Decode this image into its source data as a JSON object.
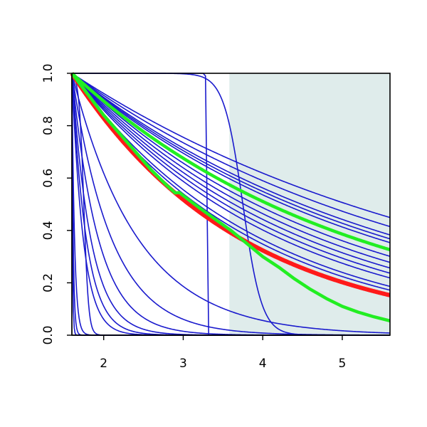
{
  "chart_data": {
    "type": "line",
    "title": "",
    "xlabel": "",
    "ylabel": "",
    "xlim": [
      1.6,
      5.6
    ],
    "ylim": [
      0.0,
      1.0
    ],
    "x_ticks": [
      2,
      3,
      4,
      5
    ],
    "y_ticks": [
      0.0,
      0.2,
      0.4,
      0.6,
      0.8,
      1.0
    ],
    "x_tick_labels": [
      "2",
      "3",
      "4",
      "5"
    ],
    "y_tick_labels": [
      "0.0",
      "0.2",
      "0.4",
      "0.6",
      "0.8",
      "1.0"
    ],
    "grid": false,
    "shaded_region": {
      "x": [
        3.58,
        5.6
      ],
      "color": "#dfeceb"
    },
    "colors": {
      "curves": "#1a1acd",
      "highlight_red": "#ff1a1a",
      "highlight_green": "#22ee22",
      "frame": "#000000"
    },
    "series": [
      {
        "kind": "exp",
        "color": "blue",
        "k": 0.2
      },
      {
        "kind": "exp",
        "color": "blue",
        "k": 0.22
      },
      {
        "kind": "exp",
        "color": "blue",
        "k": 0.24
      },
      {
        "kind": "exp",
        "color": "blue",
        "k": 0.25
      },
      {
        "kind": "exp",
        "color": "blue",
        "k": 0.26
      },
      {
        "kind": "exp",
        "color": "blue",
        "k": 0.28
      },
      {
        "kind": "exp",
        "color": "blue",
        "k": 0.3
      },
      {
        "kind": "exp",
        "color": "blue",
        "k": 0.32
      },
      {
        "kind": "exp",
        "color": "blue",
        "k": 0.34
      },
      {
        "kind": "exp",
        "color": "blue",
        "k": 0.36
      },
      {
        "kind": "exp",
        "color": "blue",
        "k": 0.38
      },
      {
        "kind": "exp",
        "color": "blue",
        "k": 0.42
      },
      {
        "kind": "exp",
        "color": "blue",
        "k": 0.44
      },
      {
        "kind": "exp",
        "color": "blue",
        "k": 0.47
      },
      {
        "kind": "exp",
        "color": "blue",
        "k": 1.2
      },
      {
        "kind": "exp",
        "color": "blue",
        "k": 2.0
      },
      {
        "kind": "exp",
        "color": "blue",
        "k": 3.0
      },
      {
        "kind": "exp",
        "color": "blue",
        "k": 4.2
      },
      {
        "kind": "exp",
        "color": "blue",
        "k": 5.5
      },
      {
        "kind": "exp",
        "color": "blue",
        "k": 7.0
      },
      {
        "kind": "exp",
        "color": "blue",
        "k": 30
      },
      {
        "kind": "exp",
        "color": "blue",
        "k": 60
      },
      {
        "kind": "exp",
        "color": "blue",
        "k": 120
      },
      {
        "kind": "step",
        "color": "blue",
        "x0": 1.75,
        "w": 0.03
      },
      {
        "kind": "step",
        "color": "blue",
        "x0": 3.75,
        "w": 0.12
      },
      {
        "kind": "cliff",
        "color": "blue",
        "points": [
          [
            1.6,
            1.0
          ],
          [
            3.25,
            1.0
          ],
          [
            3.28,
            0.99
          ],
          [
            3.32,
            0.0
          ]
        ]
      },
      {
        "kind": "exp",
        "color": "red",
        "k": 0.47
      },
      {
        "kind": "exp",
        "color": "green",
        "k": 0.28
      },
      {
        "kind": "green_drop",
        "color": "green",
        "points": [
          [
            1.6,
            1.0
          ],
          [
            1.8,
            0.92
          ],
          [
            2.0,
            0.84
          ],
          [
            2.2,
            0.77
          ],
          [
            2.4,
            0.7
          ],
          [
            2.6,
            0.63
          ],
          [
            2.8,
            0.57
          ],
          [
            2.9,
            0.543
          ],
          [
            2.95,
            0.545
          ],
          [
            3.0,
            0.533
          ],
          [
            3.2,
            0.487
          ],
          [
            3.4,
            0.443
          ],
          [
            3.6,
            0.4
          ],
          [
            3.8,
            0.35
          ],
          [
            4.0,
            0.3
          ],
          [
            4.2,
            0.26
          ],
          [
            4.4,
            0.215
          ],
          [
            4.6,
            0.175
          ],
          [
            4.8,
            0.14
          ],
          [
            5.0,
            0.11
          ],
          [
            5.2,
            0.088
          ],
          [
            5.4,
            0.07
          ],
          [
            5.6,
            0.055
          ]
        ]
      }
    ]
  }
}
